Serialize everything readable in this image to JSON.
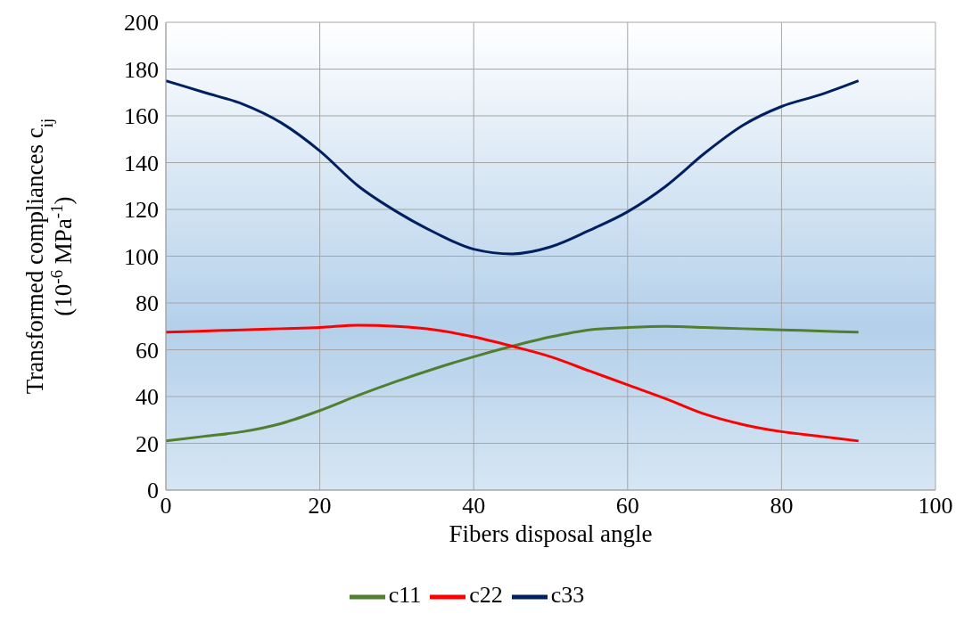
{
  "chart_data": {
    "type": "line",
    "xlabel": "Fibers disposal angle",
    "ylabel": "Transformed compliances c$_{ij}$\n(10$^{-6}$ MPa$^{-1}$)",
    "x": [
      0,
      5,
      10,
      15,
      20,
      25,
      30,
      35,
      40,
      45,
      50,
      55,
      60,
      65,
      70,
      75,
      80,
      85,
      90
    ],
    "series": [
      {
        "name": "c11",
        "color": "#4f7f2f",
        "values": [
          21,
          23,
          25,
          28.5,
          34,
          40.5,
          46.5,
          52,
          57,
          61.5,
          65.5,
          68.5,
          69.5,
          70,
          69.5,
          69,
          68.5,
          68,
          67.5
        ]
      },
      {
        "name": "c22",
        "color": "#ff0000",
        "values": [
          67.5,
          68,
          68.5,
          69,
          69.5,
          70.5,
          70,
          68.5,
          65.5,
          61.5,
          57,
          51,
          45,
          39,
          32.5,
          28,
          25,
          23,
          21
        ]
      },
      {
        "name": "c33",
        "color": "#002060",
        "values": [
          175,
          170,
          165,
          157,
          145,
          130,
          119,
          110,
          103,
          101,
          104,
          111,
          119,
          130,
          144,
          156,
          164,
          169,
          175
        ]
      }
    ],
    "xlim": [
      0,
      100
    ],
    "xticks": [
      0,
      20,
      40,
      60,
      80,
      100
    ],
    "ylim": [
      0,
      200
    ],
    "yticks": [
      0,
      20,
      40,
      60,
      80,
      100,
      120,
      140,
      160,
      180,
      200
    ],
    "grid": true,
    "legend": "bottom",
    "marker": "none",
    "line_style": "solid"
  }
}
